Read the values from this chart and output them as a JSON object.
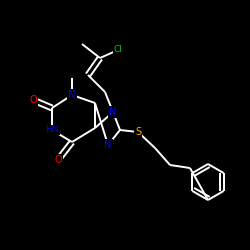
{
  "background_color": "#000000",
  "bond_color": "#ffffff",
  "atom_colors": {
    "O": "#ff0000",
    "N": "#0000ff",
    "S": "#ffa500",
    "Cl": "#00cc00",
    "C": "#ffffff",
    "H": "#ffffff"
  },
  "figsize": [
    2.5,
    2.5
  ],
  "dpi": 100
}
